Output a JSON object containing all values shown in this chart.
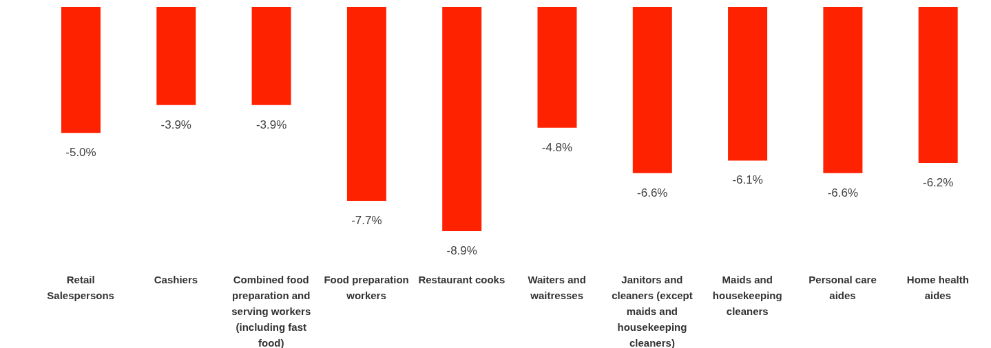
{
  "chart_data": {
    "type": "bar",
    "categories": [
      "Retail Salespersons",
      "Cashiers",
      "Combined food preparation and serving workers (including fast food)",
      "Food preparation workers",
      "Restaurant cooks",
      "Waiters and waitresses",
      "Janitors and cleaners (except maids and housekeeping cleaners)",
      "Maids and housekeeping cleaners",
      "Personal care aides",
      "Home health aides"
    ],
    "values": [
      -5.0,
      -3.9,
      -3.9,
      -7.7,
      -8.9,
      -4.8,
      -6.6,
      -6.1,
      -6.6,
      -6.2
    ],
    "value_labels": [
      "-5.0%",
      "-3.9%",
      "-3.9%",
      "-7.7%",
      "-8.9%",
      "-4.8%",
      "-6.6%",
      "-6.1%",
      "-6.6%",
      "-6.2%"
    ],
    "color": "#ff2200",
    "grid": false,
    "legend": false
  }
}
